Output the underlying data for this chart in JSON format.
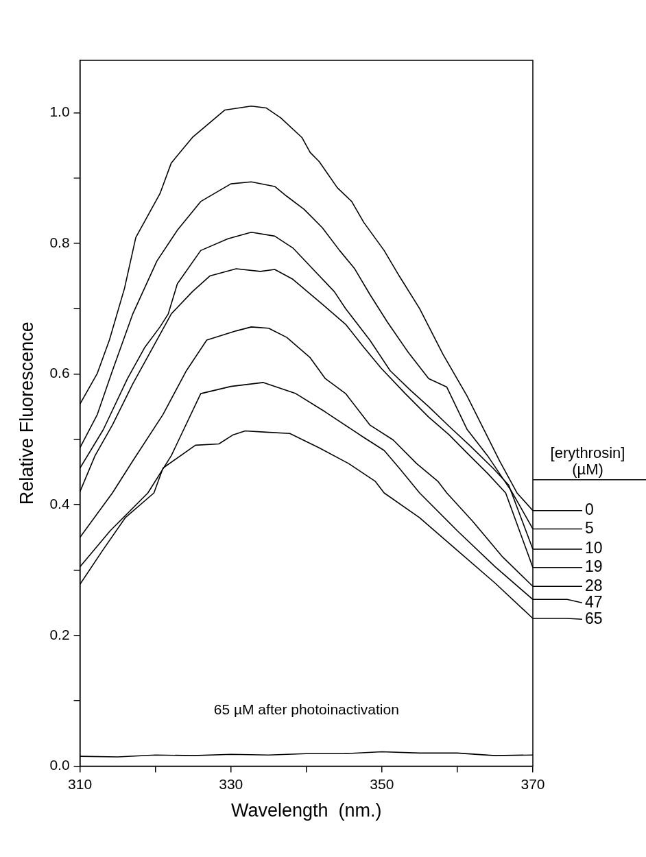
{
  "chart_data": {
    "type": "line",
    "xlabel": "Wavelength  (nm.)",
    "ylabel": "Relative Fluorescence",
    "legend_title": "[erythrosin] (µM)",
    "legend": "right",
    "grid": false,
    "marker": "none",
    "line_style": "solid",
    "xlim": [
      310,
      370
    ],
    "xticks": [
      310,
      {
        "value": 320,
        "label": null
      },
      330,
      {
        "value": 340,
        "label": null
      },
      350,
      {
        "value": 360,
        "label": null
      },
      370
    ],
    "ylim": [
      0,
      1.08
    ],
    "yticks": [
      {
        "value": 0,
        "label": "0.0"
      },
      {
        "value": 0.1,
        "label": null
      },
      {
        "value": 0.2,
        "label": "0.2"
      },
      {
        "value": 0.3,
        "label": null
      },
      {
        "value": 0.4,
        "label": "0.4"
      },
      {
        "value": 0.5,
        "label": null
      },
      {
        "value": 0.6,
        "label": "0.6"
      },
      {
        "value": 0.7,
        "label": null
      },
      {
        "value": 0.8,
        "label": "0.8"
      },
      {
        "value": 0.9,
        "label": null
      },
      {
        "value": 1.0,
        "label": "1.0"
      }
    ],
    "series": [
      {
        "name": "0",
        "color": "#000000",
        "x": [
          310,
          312.3,
          313.9,
          315.9,
          317.4,
          320.6,
          322.1,
          324.9,
          329.2,
          332.7,
          334.7,
          336.6,
          339.4,
          340.5,
          341.7,
          344.1,
          346,
          347.6,
          350.3,
          352.3,
          355,
          358.1,
          361.3,
          365.6,
          367.9,
          370
        ],
        "values": [
          0.554,
          0.601,
          0.652,
          0.731,
          0.809,
          0.876,
          0.923,
          0.962,
          1.004,
          1.01,
          1.007,
          0.992,
          0.962,
          0.939,
          0.925,
          0.885,
          0.864,
          0.832,
          0.789,
          0.75,
          0.7,
          0.63,
          0.566,
          0.467,
          0.418,
          0.391
        ]
      },
      {
        "name": "5",
        "color": "#000000",
        "x": [
          310,
          312.3,
          314.3,
          317,
          320.2,
          322.9,
          326,
          330,
          332.7,
          335.8,
          337.4,
          339.7,
          342.1,
          344.4,
          346.4,
          348.4,
          350.7,
          353.5,
          356.2,
          358.6,
          361.3,
          364,
          367.2,
          370
        ],
        "values": [
          0.487,
          0.538,
          0.605,
          0.692,
          0.773,
          0.82,
          0.864,
          0.891,
          0.894,
          0.887,
          0.872,
          0.852,
          0.824,
          0.789,
          0.761,
          0.722,
          0.68,
          0.633,
          0.593,
          0.58,
          0.515,
          0.475,
          0.42,
          0.363
        ]
      },
      {
        "name": "10",
        "color": "#000000",
        "x": [
          310,
          313.1,
          316.3,
          318.6,
          320.6,
          321.7,
          322.9,
          326,
          329.6,
          332.7,
          335.8,
          338.2,
          340.5,
          343.7,
          345.2,
          348.4,
          351.1,
          353.8,
          356.2,
          358.9,
          361.7,
          364.8,
          366.8,
          370
        ],
        "values": [
          0.456,
          0.515,
          0.593,
          0.641,
          0.672,
          0.692,
          0.738,
          0.789,
          0.807,
          0.817,
          0.811,
          0.793,
          0.765,
          0.726,
          0.7,
          0.652,
          0.605,
          0.575,
          0.55,
          0.52,
          0.49,
          0.455,
          0.43,
          0.332
        ]
      },
      {
        "name": "19",
        "color": "#000000",
        "x": [
          310,
          312,
          314.3,
          317,
          320.2,
          322.1,
          324.9,
          327.2,
          330.7,
          333.9,
          335.8,
          338.2,
          342.1,
          345.2,
          347.6,
          349.9,
          353.1,
          356.2,
          358.9,
          361.3,
          364,
          366.4,
          370
        ],
        "values": [
          0.42,
          0.475,
          0.522,
          0.585,
          0.652,
          0.692,
          0.726,
          0.75,
          0.761,
          0.757,
          0.76,
          0.745,
          0.707,
          0.676,
          0.641,
          0.609,
          0.57,
          0.534,
          0.507,
          0.479,
          0.448,
          0.418,
          0.304
        ]
      },
      {
        "name": "28",
        "color": "#000000",
        "x": [
          310,
          314.3,
          317,
          321,
          324.1,
          326.8,
          330.7,
          332.7,
          335,
          337.4,
          340.5,
          342.5,
          345.2,
          348.4,
          351.5,
          354.6,
          357.4,
          358.6,
          362,
          366,
          370
        ],
        "values": [
          0.35,
          0.418,
          0.467,
          0.538,
          0.605,
          0.652,
          0.666,
          0.672,
          0.67,
          0.656,
          0.625,
          0.593,
          0.57,
          0.522,
          0.499,
          0.463,
          0.436,
          0.418,
          0.375,
          0.32,
          0.275
        ]
      },
      {
        "name": "47",
        "color": "#000000",
        "x": [
          310,
          314,
          319,
          322.1,
          326,
          330,
          334.3,
          338.6,
          342.5,
          347.6,
          350.3,
          352.3,
          355,
          360,
          365,
          370
        ],
        "values": [
          0.305,
          0.36,
          0.418,
          0.475,
          0.57,
          0.581,
          0.587,
          0.57,
          0.542,
          0.503,
          0.483,
          0.456,
          0.418,
          0.36,
          0.305,
          0.255
        ]
      },
      {
        "name": "65",
        "color": "#000000",
        "x": [
          310,
          313,
          316,
          319.8,
          321,
          325.3,
          328.4,
          330.3,
          331.9,
          334.7,
          337.8,
          341.7,
          345.6,
          349.1,
          350.3,
          355,
          360,
          365,
          370
        ],
        "values": [
          0.278,
          0.33,
          0.38,
          0.418,
          0.456,
          0.491,
          0.493,
          0.507,
          0.513,
          0.511,
          0.509,
          0.487,
          0.463,
          0.436,
          0.418,
          0.38,
          0.33,
          0.28,
          0.226
        ]
      },
      {
        "name": "65 µM after photoinactivation",
        "color": "#000000",
        "x": [
          310,
          315,
          320,
          325,
          330,
          335,
          340,
          345,
          350,
          355,
          360,
          365,
          370
        ],
        "values": [
          0.015,
          0.014,
          0.017,
          0.016,
          0.018,
          0.017,
          0.019,
          0.019,
          0.022,
          0.02,
          0.02,
          0.016,
          0.017
        ]
      }
    ]
  }
}
